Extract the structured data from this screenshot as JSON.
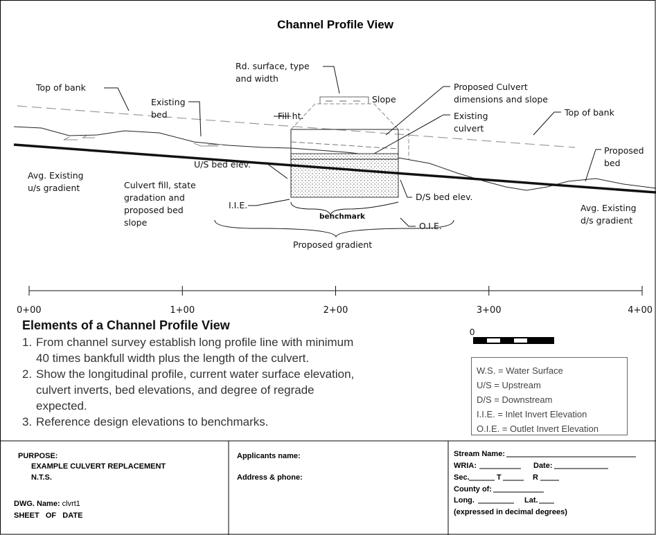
{
  "title": "Channel Profile View",
  "labels": [
    {
      "lines": [
        "Top of bank"
      ]
    },
    {
      "lines": [
        "Existing",
        "bed"
      ]
    },
    {
      "lines": [
        "Rd. surface, type",
        "and width"
      ]
    },
    {
      "lines": [
        "Slope"
      ]
    },
    {
      "lines": [
        "Fill ht."
      ]
    },
    {
      "lines": [
        "Proposed Culvert",
        "dimensions and slope"
      ]
    },
    {
      "lines": [
        "Existing",
        "culvert"
      ]
    },
    {
      "lines": [
        "Top of bank"
      ]
    },
    {
      "lines": [
        "Proposed",
        "bed"
      ]
    },
    {
      "lines": [
        "Avg. Existing",
        "u/s gradient"
      ]
    },
    {
      "lines": [
        "U/S bed elev."
      ]
    },
    {
      "lines": [
        "Culvert fill, state",
        "gradation and",
        "proposed bed",
        "slope"
      ]
    },
    {
      "lines": [
        "I.I.E."
      ]
    },
    {
      "lines": [
        "benchmark"
      ]
    },
    {
      "lines": [
        "O.I.E."
      ]
    },
    {
      "lines": [
        "D/S bed elev."
      ]
    },
    {
      "lines": [
        "Avg. Existing",
        "d/s gradient"
      ]
    },
    {
      "lines": [
        "Proposed gradient"
      ]
    }
  ],
  "stations": [
    "0+00",
    "1+00",
    "2+00",
    "3+00",
    "4+00"
  ],
  "elements": {
    "heading": "Elements of a Channel Profile View",
    "items": [
      {
        "number": "1.",
        "lines": [
          "From channel survey establish long profile line with minimum",
          "40 times bankfull width plus the length of the culvert."
        ]
      },
      {
        "number": "2.",
        "lines": [
          "Show the longitudinal profile, current water surface elevation,",
          "culvert inverts, bed elevations, and degree of regrade",
          "expected."
        ]
      },
      {
        "number": "3.",
        "lines": [
          "Reference design elevations to benchmarks."
        ]
      }
    ]
  },
  "scale_bar": {
    "label": "0"
  },
  "legend": [
    "W.S. = Water Surface",
    "U/S = Upstream",
    "D/S = Downstream",
    "I.I.E. = Inlet Invert Elevation",
    "O.I.E. = Outlet Invert Elevation"
  ],
  "footer": {
    "purpose": {
      "heading": "PURPOSE:",
      "lines": [
        "EXAMPLE CULVERT REPLACEMENT",
        "N.T.S."
      ],
      "dwg_label": "DWG. Name:",
      "dwg_value": "clvrt1",
      "sheet": "SHEET   OF   DATE"
    },
    "applicant": {
      "name": "Applicants name:",
      "address": "Address & phone:"
    },
    "stream": [
      "Stream Name:",
      "WRIA:",
      "Date:",
      "Sec.",
      "T",
      "R",
      "County of:",
      "Long.",
      "Lat.",
      "(expressed in decimal degrees)"
    ]
  }
}
